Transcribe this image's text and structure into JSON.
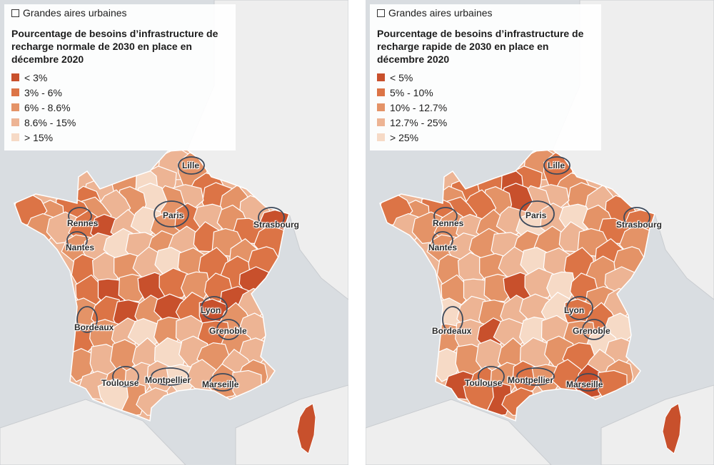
{
  "colors": {
    "c1": "#c8502c",
    "c2": "#dc7446",
    "c3": "#e49367",
    "c4": "#edb494",
    "c5": "#f6dac6",
    "sea": "#d9dde1",
    "land_outside": "#eeeeee",
    "boundary": "#3d4a5c"
  },
  "maps": [
    {
      "id": "normale",
      "toggle_label": "Grandes aires urbaines",
      "title": "Pourcentage de besoins d’infrastructure de recharge normale de 2030 en place en décembre 2020",
      "legend": [
        {
          "label": "< 3%",
          "color": "c1"
        },
        {
          "label": "3% - 6%",
          "color": "c2"
        },
        {
          "label": "6% - 8.6%",
          "color": "c3"
        },
        {
          "label": "8.6% - 15%",
          "color": "c4"
        },
        {
          "label": "> 15%",
          "color": "c5"
        }
      ],
      "cities": [
        "Lille",
        "Paris",
        "Strasbourg",
        "Rennes",
        "Nantes",
        "Lyon",
        "Bordeaux",
        "Grenoble",
        "Toulouse",
        "Montpellier",
        "Marseille"
      ]
    },
    {
      "id": "rapide",
      "toggle_label": "Grandes aires urbaines",
      "title": "Pourcentage de besoins d’infrastructure de recharge rapide de 2030 en place en décembre 2020",
      "legend": [
        {
          "label": "< 5%",
          "color": "c1"
        },
        {
          "label": "5% - 10%",
          "color": "c2"
        },
        {
          "label": "10% - 12.7%",
          "color": "c3"
        },
        {
          "label": "12.7% - 25%",
          "color": "c4"
        },
        {
          "label": "> 25%",
          "color": "c5"
        }
      ],
      "cities": [
        "Lille",
        "Paris",
        "Strasbourg",
        "Rennes",
        "Nantes",
        "Lyon",
        "Bordeaux",
        "Grenoble",
        "Toulouse",
        "Montpellier",
        "Marseille"
      ]
    }
  ]
}
